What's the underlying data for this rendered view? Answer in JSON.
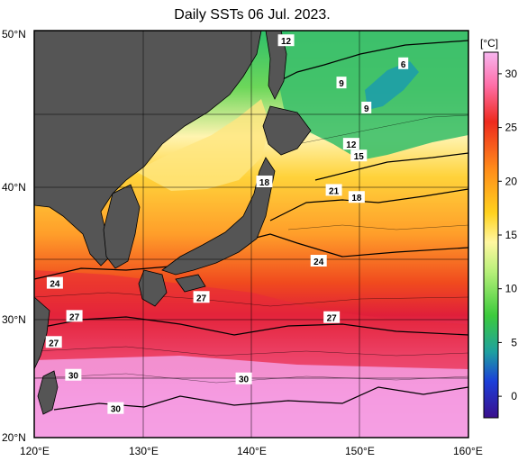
{
  "title": "Daily SSTs 06 Jul. 2023.",
  "map": {
    "lat_labels": [
      "50°N",
      "40°N",
      "30°N",
      "20°N"
    ],
    "lon_labels": [
      "120°E",
      "130°E",
      "140°E",
      "150°E",
      "160°E"
    ],
    "contour_labels": [
      {
        "text": "12",
        "lon": 143.2,
        "lat": 49.4
      },
      {
        "text": "6",
        "lon": 154.0,
        "lat": 48.0
      },
      {
        "text": "9",
        "lon": 148.3,
        "lat": 46.8
      },
      {
        "text": "9",
        "lon": 150.6,
        "lat": 45.2
      },
      {
        "text": "12",
        "lon": 149.2,
        "lat": 42.8
      },
      {
        "text": "15",
        "lon": 149.9,
        "lat": 42.0
      },
      {
        "text": "18",
        "lon": 141.2,
        "lat": 40.2
      },
      {
        "text": "21",
        "lon": 147.6,
        "lat": 39.6
      },
      {
        "text": "18",
        "lon": 149.7,
        "lat": 39.1
      },
      {
        "text": "24",
        "lon": 146.2,
        "lat": 34.4
      },
      {
        "text": "24",
        "lon": 121.9,
        "lat": 32.7
      },
      {
        "text": "27",
        "lon": 135.4,
        "lat": 31.6
      },
      {
        "text": "27",
        "lon": 123.7,
        "lat": 30.1
      },
      {
        "text": "27",
        "lon": 147.4,
        "lat": 30.0
      },
      {
        "text": "27",
        "lon": 121.8,
        "lat": 28.0
      },
      {
        "text": "30",
        "lon": 123.6,
        "lat": 25.3
      },
      {
        "text": "30",
        "lon": 139.3,
        "lat": 25.0
      },
      {
        "text": "30",
        "lon": 127.5,
        "lat": 22.5
      }
    ]
  },
  "colorbar": {
    "unit": "[°C]",
    "ticks": [
      "30",
      "25",
      "20",
      "15",
      "10",
      "5",
      "0"
    ],
    "min": -2,
    "max": 32
  },
  "colors": {
    "land": "#555555",
    "frame": "#000000"
  }
}
